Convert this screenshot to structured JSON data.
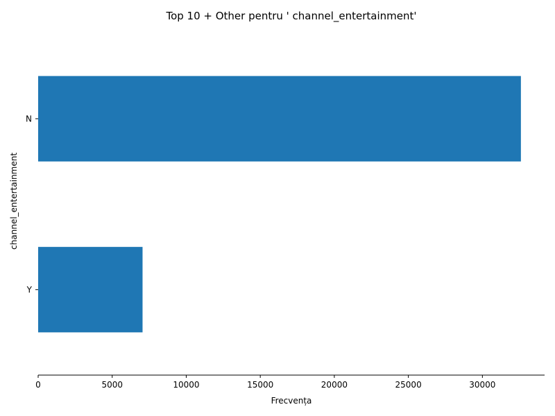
{
  "chart_data": {
    "type": "bar",
    "orientation": "horizontal",
    "title": "Top 10 + Other pentru ' channel_entertainment'",
    "xlabel": "Frecvența",
    "ylabel": "channel_entertainment",
    "categories": [
      "N",
      "Y"
    ],
    "values": [
      32600,
      7050
    ],
    "xlim": [
      0,
      34200
    ],
    "xticks": [
      0,
      5000,
      10000,
      15000,
      20000,
      25000,
      30000
    ],
    "grid": false,
    "bar_color": "#1f77b4"
  }
}
